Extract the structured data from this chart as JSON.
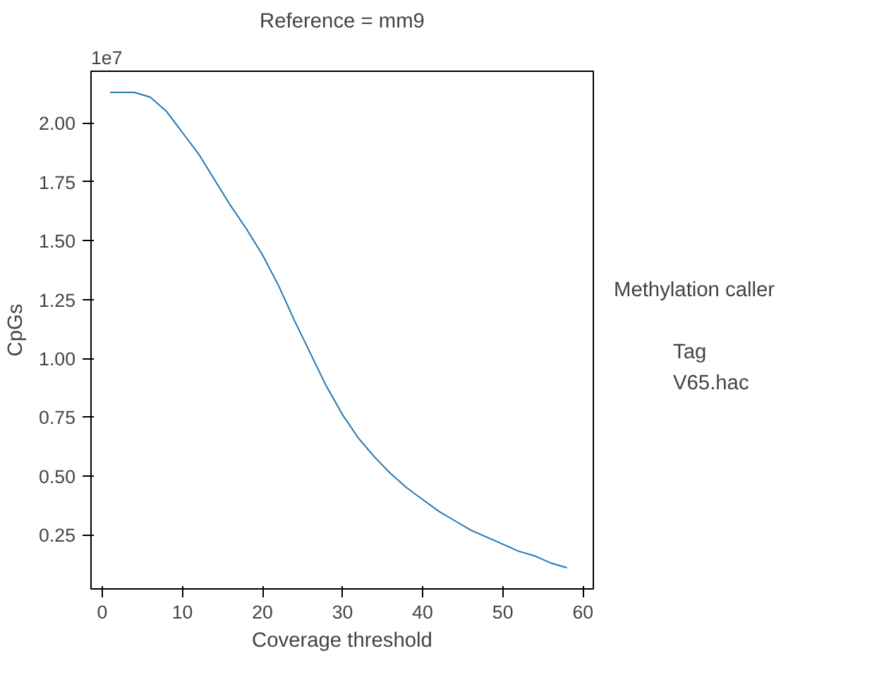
{
  "chart_data": {
    "type": "line",
    "subtitle": "Reference = mm9",
    "xlabel": "Coverage threshold",
    "ylabel": "CpGs",
    "legend_title": "Methylation caller",
    "annotations": [
      "1e7",
      "Tag"
    ],
    "x": [
      1,
      4,
      6,
      8,
      10,
      12,
      14,
      16,
      18,
      20,
      22,
      24,
      26,
      28,
      30,
      32,
      34,
      36,
      38,
      40,
      42,
      44,
      46,
      48,
      50,
      52,
      54,
      56,
      58
    ],
    "series": [
      {
        "name": "V65.hac",
        "color": "#1f77b4",
        "values": [
          2.13,
          2.13,
          2.11,
          2.05,
          1.96,
          1.87,
          1.76,
          1.65,
          1.55,
          1.44,
          1.31,
          1.16,
          1.02,
          0.88,
          0.76,
          0.66,
          0.58,
          0.51,
          0.45,
          0.4,
          0.35,
          0.31,
          0.27,
          0.24,
          0.21,
          0.18,
          0.16,
          0.13,
          0.11
        ]
      }
    ],
    "xlim": [
      -1.4,
      61.3
    ],
    "ylim": [
      0.02,
      2.22
    ],
    "xticks": [
      0,
      10,
      20,
      30,
      40,
      50,
      60
    ],
    "yticks": [
      {
        "value": 0.25,
        "label": "0.25"
      },
      {
        "value": 0.5,
        "label": "0.50"
      },
      {
        "value": 0.75,
        "label": "0.75"
      },
      {
        "value": 1.0,
        "label": "1.00"
      },
      {
        "value": 1.25,
        "label": "1.25"
      },
      {
        "value": 1.5,
        "label": "1.50"
      },
      {
        "value": 1.75,
        "label": "1.75"
      },
      {
        "value": 2.0,
        "label": "2.00"
      }
    ],
    "grid": false,
    "legend": "right",
    "line_style": "solid",
    "marker": "none"
  }
}
